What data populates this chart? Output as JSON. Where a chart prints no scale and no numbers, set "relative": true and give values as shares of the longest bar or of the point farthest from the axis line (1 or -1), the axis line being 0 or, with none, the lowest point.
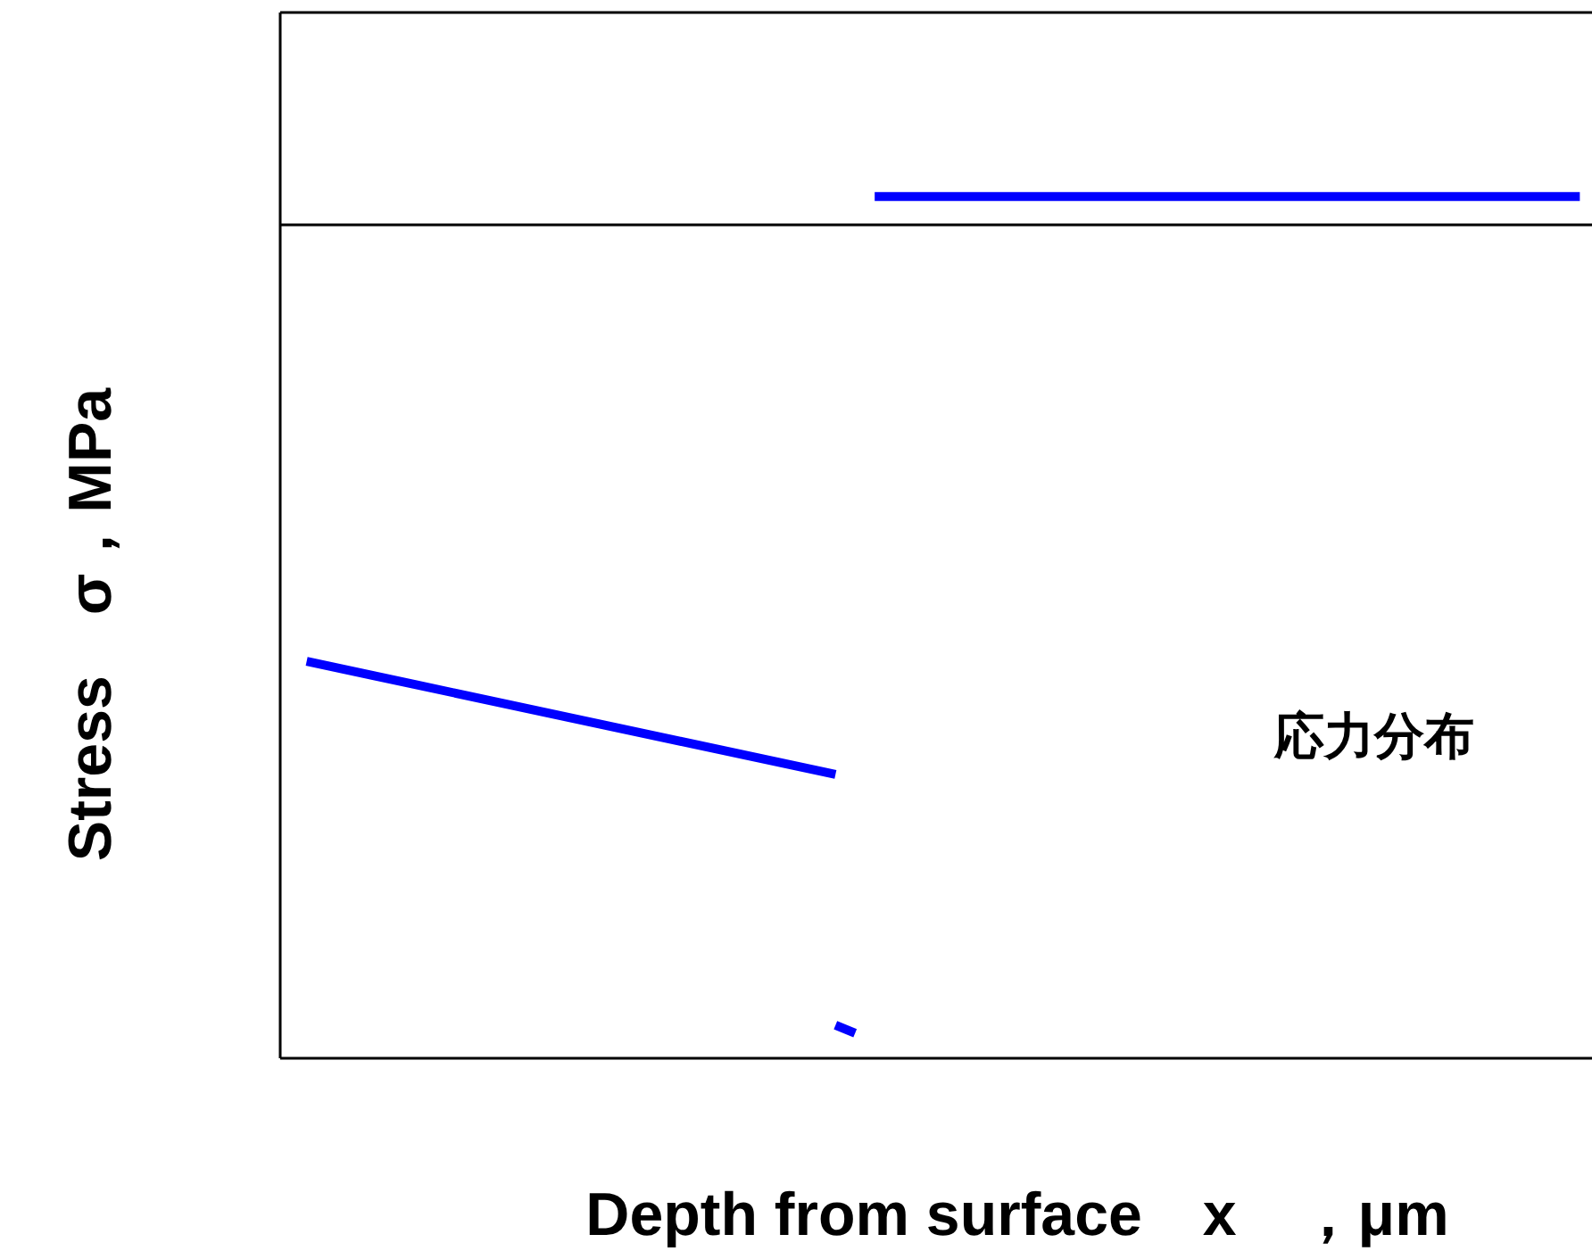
{
  "chart_data": {
    "type": "line",
    "relative": true,
    "xlabel": "Depth from surface　x　，μm",
    "ylabel": "Stress　σ，MPa",
    "annotations": [
      "応力分布"
    ],
    "categories": [
      null,
      null,
      null,
      null,
      null,
      null,
      null,
      null,
      null,
      null,
      null,
      null,
      null,
      null,
      null,
      null,
      null,
      null,
      null,
      null,
      null,
      null,
      null,
      null,
      null,
      null,
      null,
      null,
      null,
      null,
      null,
      null,
      null,
      null,
      null,
      null,
      null,
      null,
      null,
      null,
      null,
      null,
      null,
      null,
      null,
      null,
      null,
      null,
      null,
      null,
      null,
      null,
      null,
      null,
      null,
      null,
      null,
      null,
      null,
      null,
      null,
      null,
      null,
      null,
      null,
      null
    ],
    "series": [
      {
        "color": "#0000ff",
        "values": [
          -0.54,
          null,
          null,
          null,
          null,
          null,
          null,
          null,
          null,
          null,
          null,
          null,
          null,
          null,
          null,
          null,
          null,
          null,
          null,
          null,
          null,
          null,
          null,
          null,
          null,
          null,
          null,
          -0.68,
          null,
          null,
          null,
          null,
          null,
          null,
          null,
          null,
          null,
          null,
          null,
          null,
          null,
          null,
          null,
          null,
          null,
          null,
          null,
          null,
          null,
          null,
          null,
          null,
          null,
          null,
          null,
          null,
          null,
          null,
          null,
          null,
          null,
          null,
          null,
          null,
          null,
          null
        ]
      },
      {
        "color": "#0000ff",
        "values": [
          null,
          null,
          null,
          null,
          null,
          null,
          null,
          null,
          null,
          null,
          null,
          null,
          null,
          null,
          null,
          null,
          null,
          null,
          null,
          null,
          null,
          null,
          null,
          null,
          null,
          null,
          null,
          -0.99,
          -1,
          null,
          null,
          null,
          null,
          null,
          null,
          null,
          null,
          null,
          null,
          null,
          null,
          null,
          null,
          null,
          null,
          null,
          null,
          null,
          null,
          null,
          null,
          null,
          null,
          null,
          null,
          null,
          null,
          null,
          null,
          null,
          null,
          null,
          null,
          null,
          null,
          null
        ]
      },
      {
        "color": "#0000ff",
        "values": [
          null,
          null,
          null,
          null,
          null,
          null,
          null,
          null,
          null,
          null,
          null,
          null,
          null,
          null,
          null,
          null,
          null,
          null,
          null,
          null,
          null,
          null,
          null,
          null,
          null,
          null,
          null,
          null,
          null,
          0.035,
          null,
          null,
          null,
          null,
          null,
          null,
          null,
          null,
          null,
          null,
          null,
          null,
          null,
          null,
          null,
          null,
          null,
          null,
          null,
          null,
          null,
          null,
          null,
          null,
          null,
          null,
          null,
          null,
          null,
          null,
          null,
          null,
          null,
          null,
          null,
          0.035
        ]
      }
    ]
  }
}
